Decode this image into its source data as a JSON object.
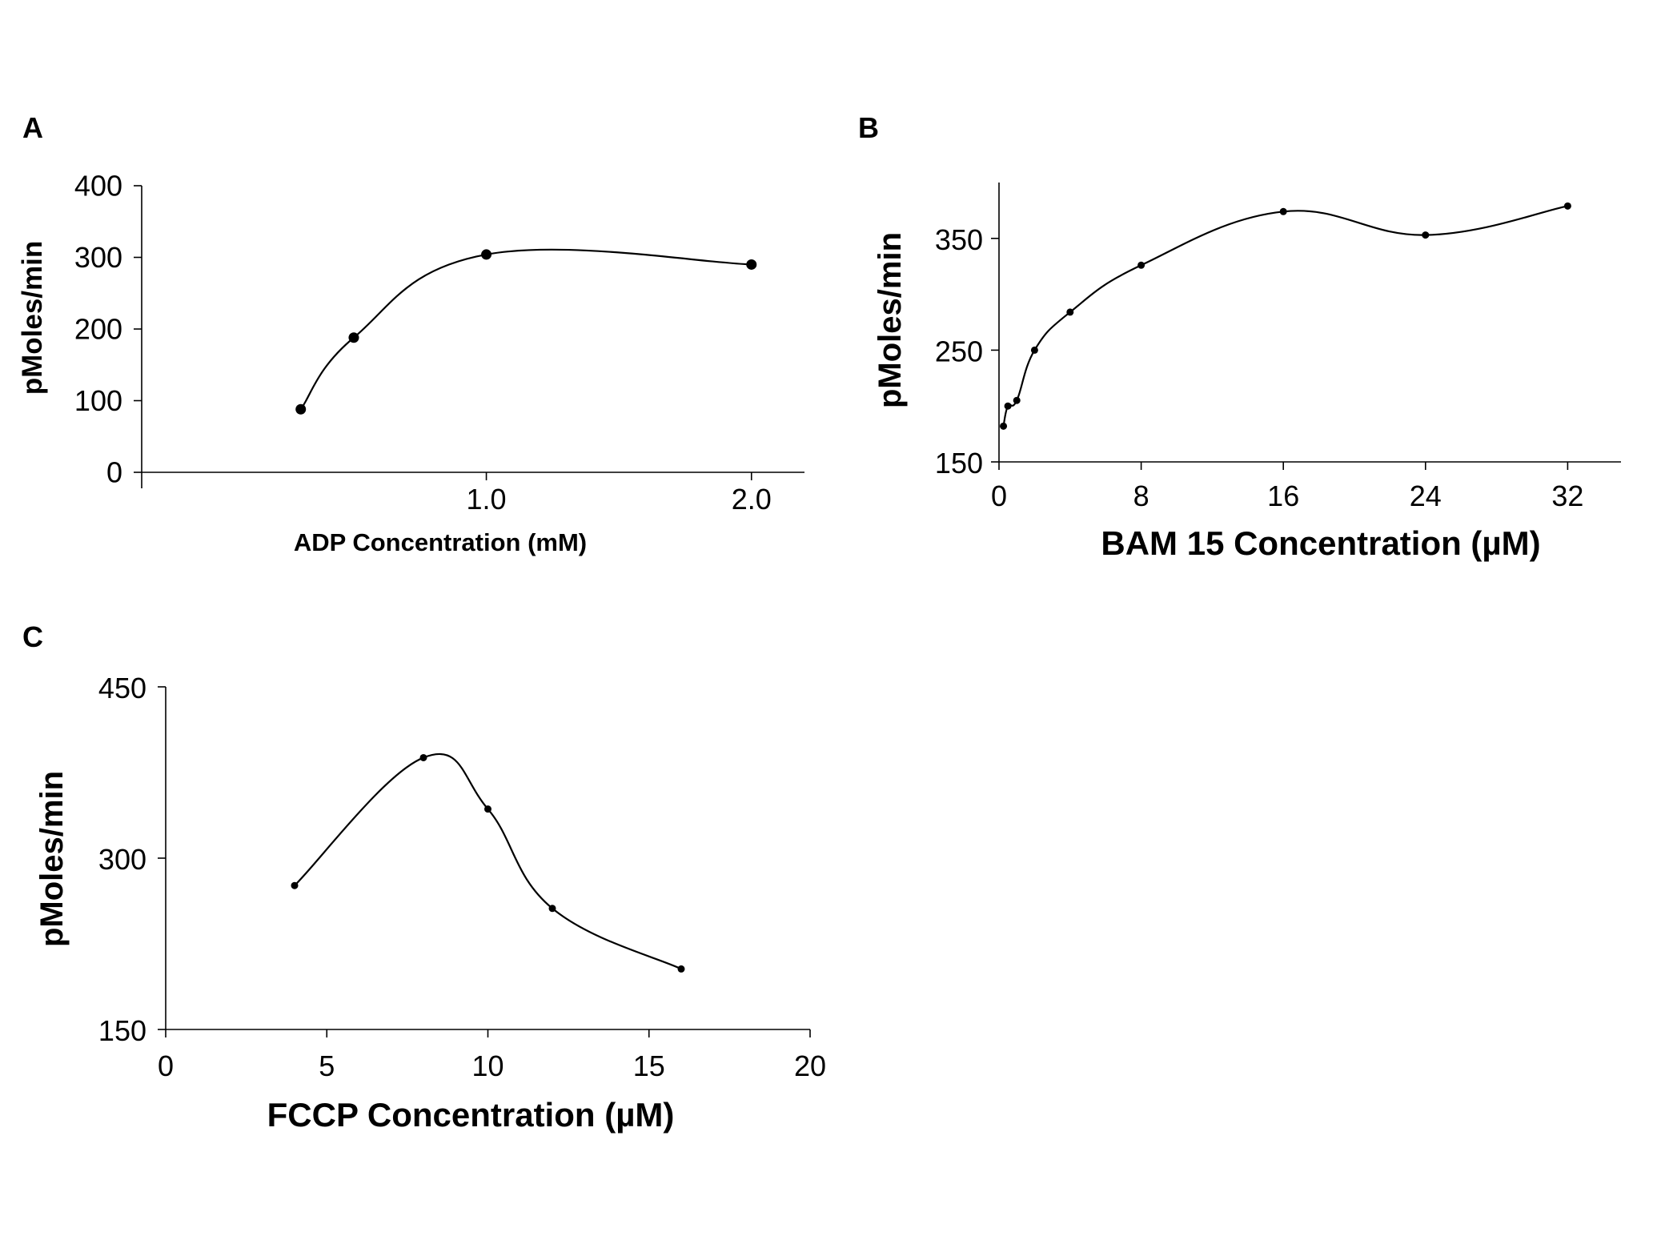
{
  "chart_data": [
    {
      "panel": "A",
      "type": "line",
      "title": "",
      "xlabel": "ADP Concentration (mM)",
      "ylabel": "pMoles/min",
      "xlim": [
        -0.3,
        2.2
      ],
      "ylim": [
        0,
        400
      ],
      "x_ticks": [
        1.0,
        2.0
      ],
      "x_tick_labels": [
        "1.0",
        "2.0"
      ],
      "y_ticks": [
        0,
        100,
        200,
        300,
        400
      ],
      "y_tick_labels": [
        "0",
        "100",
        "200",
        "300",
        "400"
      ],
      "grid": false,
      "legend": "none",
      "series": [
        {
          "name": "ADP",
          "x": [
            0.3,
            0.5,
            1.0,
            2.0
          ],
          "y": [
            88,
            188,
            304,
            290
          ]
        }
      ]
    },
    {
      "panel": "B",
      "type": "line",
      "title": "",
      "xlabel": "BAM 15 Concentration (µM)",
      "ylabel": "pMoles/min",
      "xlim": [
        0,
        35
      ],
      "ylim": [
        150,
        400
      ],
      "x_ticks": [
        0,
        8,
        16,
        24,
        32
      ],
      "x_tick_labels": [
        "0",
        "8",
        "16",
        "24",
        "32"
      ],
      "y_ticks": [
        150,
        250,
        350
      ],
      "y_tick_labels": [
        "150",
        "250",
        "350"
      ],
      "grid": false,
      "legend": "none",
      "series": [
        {
          "name": "BAM 15",
          "x": [
            0.25,
            0.5,
            1,
            2,
            4,
            8,
            16,
            24,
            32
          ],
          "y": [
            182,
            200,
            205,
            250,
            284,
            326,
            374,
            353,
            379
          ]
        }
      ]
    },
    {
      "panel": "C",
      "type": "line",
      "title": "",
      "xlabel": "FCCP Concentration (µM)",
      "ylabel": "pMoles/min",
      "xlim": [
        0,
        20
      ],
      "ylim": [
        150,
        450
      ],
      "x_ticks": [
        0,
        5,
        10,
        15,
        20
      ],
      "x_tick_labels": [
        "0",
        "5",
        "10",
        "15",
        "20"
      ],
      "y_ticks": [
        150,
        300,
        450
      ],
      "y_tick_labels": [
        "150",
        "300",
        "450"
      ],
      "grid": false,
      "legend": "none",
      "series": [
        {
          "name": "FCCP",
          "x": [
            4,
            8,
            10,
            12,
            16
          ],
          "y": [
            276,
            388,
            343,
            256,
            203
          ]
        }
      ]
    }
  ]
}
